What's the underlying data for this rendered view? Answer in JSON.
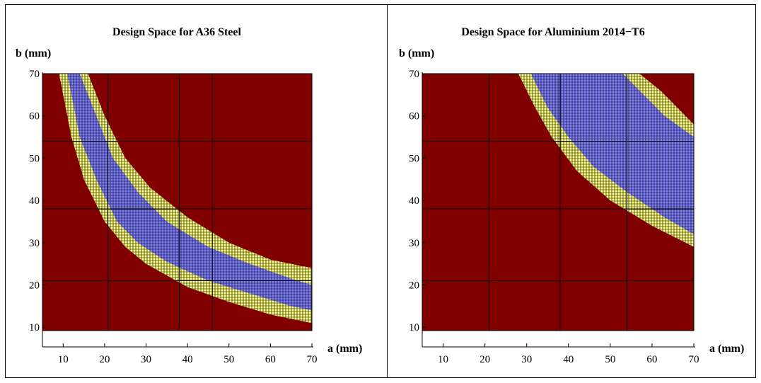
{
  "colors": {
    "infeasible": "#800000",
    "boundary": "#ffff80",
    "feasible": "#8080ff",
    "grid": "#000000"
  },
  "chart_data": [
    {
      "type": "heatmap",
      "title": "Design Space for A36 Steel",
      "xlabel": "a (mm)",
      "ylabel": "b (mm)",
      "xlim": [
        5,
        70
      ],
      "ylim": [
        5,
        70
      ],
      "xticks": [
        10,
        20,
        30,
        40,
        50,
        60,
        70
      ],
      "yticks": [
        10,
        20,
        30,
        40,
        50,
        60,
        70
      ],
      "categories": [
        "infeasible",
        "boundary",
        "feasible"
      ],
      "boundary_curves": {
        "outer_lower": [
          [
            9,
            70
          ],
          [
            12,
            55
          ],
          [
            15,
            45
          ],
          [
            20,
            35
          ],
          [
            25,
            29
          ],
          [
            30,
            25
          ],
          [
            40,
            19.5
          ],
          [
            50,
            16
          ],
          [
            60,
            13
          ],
          [
            70,
            11
          ]
        ],
        "inner_lower": [
          [
            11,
            70
          ],
          [
            14,
            55
          ],
          [
            18,
            45
          ],
          [
            23,
            35
          ],
          [
            28,
            30
          ],
          [
            35,
            25.5
          ],
          [
            45,
            21
          ],
          [
            55,
            18
          ],
          [
            65,
            15
          ],
          [
            70,
            14
          ]
        ],
        "inner_upper": [
          [
            14,
            70
          ],
          [
            18,
            60
          ],
          [
            22,
            50
          ],
          [
            28,
            42
          ],
          [
            35,
            35
          ],
          [
            45,
            29
          ],
          [
            55,
            25
          ],
          [
            65,
            21.5
          ],
          [
            70,
            20
          ]
        ],
        "outer_upper": [
          [
            16,
            70
          ],
          [
            20,
            60
          ],
          [
            25,
            50
          ],
          [
            31,
            43
          ],
          [
            40,
            36
          ],
          [
            50,
            30
          ],
          [
            60,
            26
          ],
          [
            70,
            24
          ]
        ]
      }
    },
    {
      "type": "heatmap",
      "title": "Design Space for Aluminium 2014−T6",
      "xlabel": "a (mm)",
      "ylabel": "b (mm)",
      "xlim": [
        5,
        70
      ],
      "ylim": [
        5,
        70
      ],
      "xticks": [
        10,
        20,
        30,
        40,
        50,
        60,
        70
      ],
      "yticks": [
        10,
        20,
        30,
        40,
        50,
        60,
        70
      ],
      "categories": [
        "infeasible",
        "boundary",
        "feasible"
      ],
      "boundary_curves": {
        "outer_lower": [
          [
            28,
            70
          ],
          [
            32,
            62
          ],
          [
            36,
            55
          ],
          [
            42,
            47
          ],
          [
            50,
            40
          ],
          [
            60,
            34
          ],
          [
            70,
            29
          ]
        ],
        "inner_lower": [
          [
            31,
            70
          ],
          [
            35,
            62
          ],
          [
            40,
            55
          ],
          [
            46,
            48
          ],
          [
            54,
            42
          ],
          [
            63,
            36
          ],
          [
            70,
            32
          ]
        ],
        "inner_upper": [
          [
            53,
            70
          ],
          [
            58,
            65
          ],
          [
            63,
            60
          ],
          [
            70,
            55
          ]
        ],
        "outer_upper": [
          [
            57,
            70
          ],
          [
            62,
            66
          ],
          [
            66,
            62
          ],
          [
            70,
            58
          ]
        ]
      }
    }
  ]
}
